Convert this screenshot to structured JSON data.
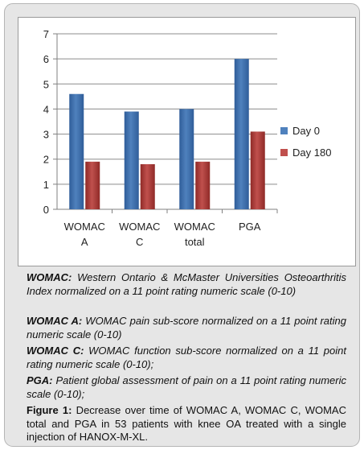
{
  "chart_data": {
    "type": "bar",
    "categories": [
      [
        "WOMAC",
        "A"
      ],
      [
        "WOMAC",
        "C"
      ],
      [
        "WOMAC",
        "total"
      ],
      [
        "PGA"
      ]
    ],
    "series": [
      {
        "name": "Day 0",
        "values": [
          4.6,
          3.9,
          4.0,
          6.0
        ]
      },
      {
        "name": "Day 180",
        "values": [
          1.9,
          1.8,
          1.9,
          3.1
        ]
      }
    ],
    "ylim": [
      0,
      7
    ],
    "yticks": [
      "0",
      "1",
      "2",
      "3",
      "4",
      "5",
      "6",
      "7"
    ],
    "grid": true,
    "legend_position": "right"
  },
  "colors": {
    "day0": "#4f81bd",
    "day0_dark": "#2f5d99",
    "day180": "#c0504d",
    "day180_dark": "#8f2a27",
    "grid": "#8c8c8c",
    "axis": "#808080",
    "text": "#222222"
  },
  "notes": [
    {
      "term": "WOMAC:",
      "text": " Western Ontario & McMaster Universities Osteoarthritis Index normalized on a 11 point rating numeric scale (0-10)"
    },
    {
      "term": "WOMAC A:",
      "text": " WOMAC pain sub-score normalized on a 11 point rating numeric scale (0-10)"
    },
    {
      "term": "WOMAC C:",
      "text": " WOMAC function sub-score normalized on a 11 point rating numeric scale (0-10);"
    },
    {
      "term": "PGA:",
      "text": " Patient global assessment of pain on a 11 point rating numeric scale (0-10);"
    }
  ],
  "figure_caption": {
    "label": "Figure 1:",
    "text": " Decrease over time of WOMAC A, WOMAC C, WOMAC total and PGA in 53 patients with knee OA treated with a single injection of HANOX-M-XL."
  }
}
